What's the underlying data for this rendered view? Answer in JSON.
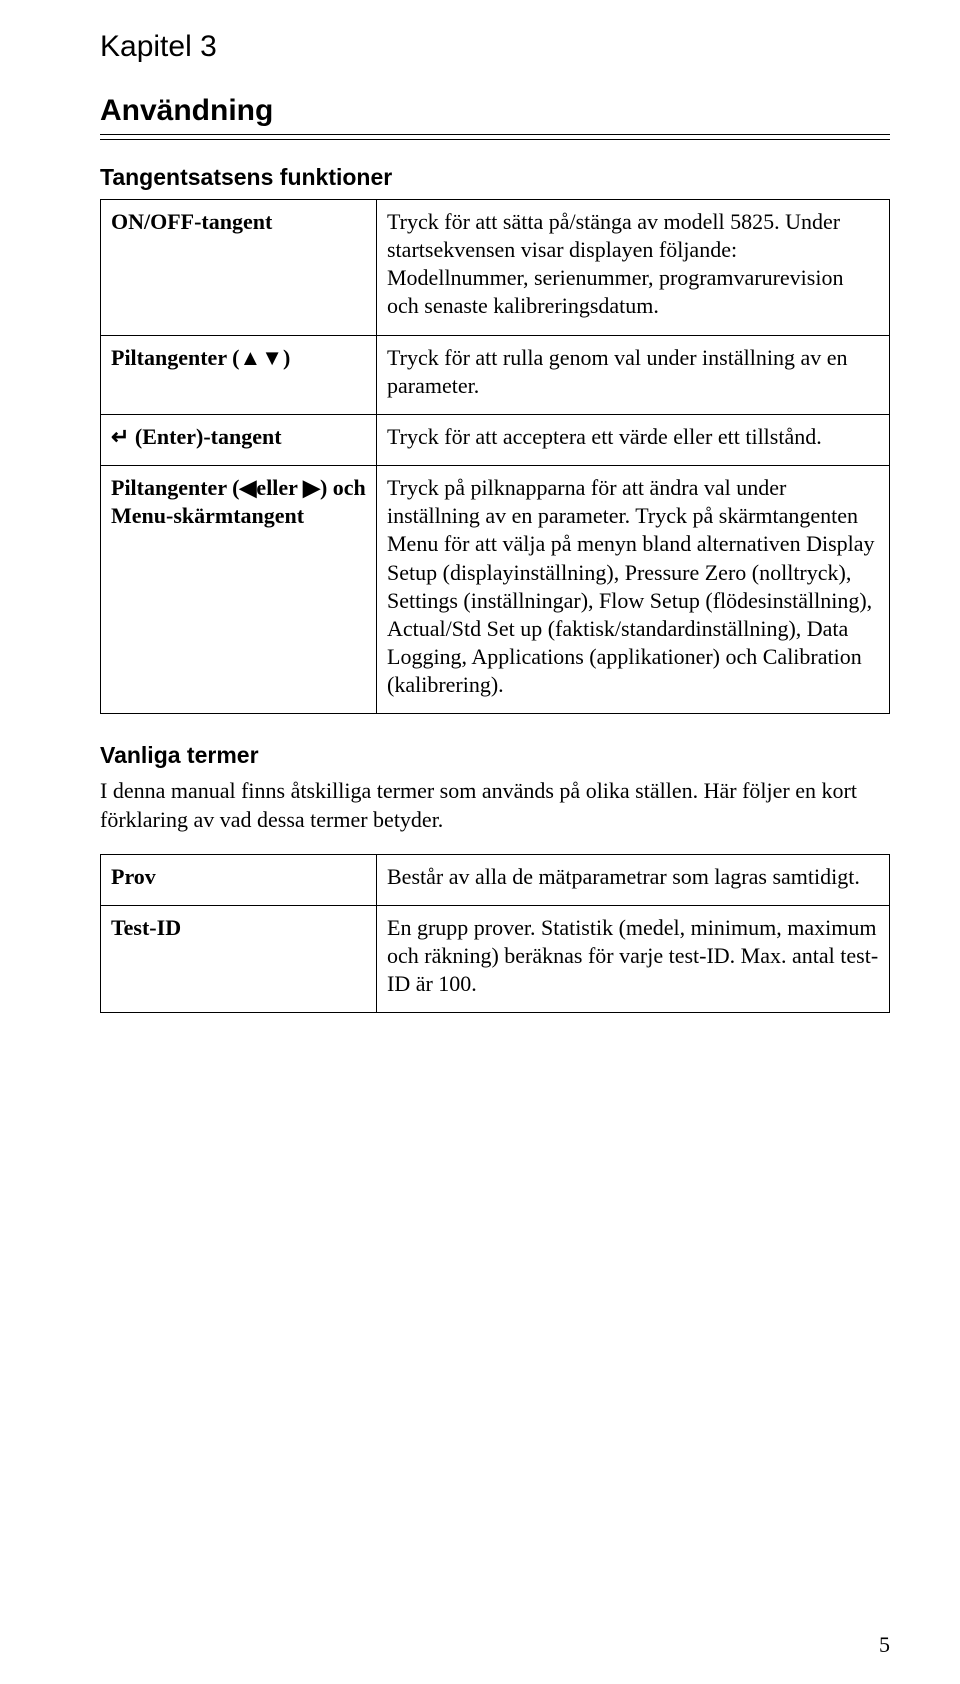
{
  "chapter": "Kapitel 3",
  "title": "Användning",
  "section1": {
    "heading": "Tangentsatsens funktioner",
    "rows": [
      {
        "term": "ON/OFF-tangent",
        "desc": "Tryck för att sätta på/stänga av modell 5825. Under startsekvensen visar displayen följande: Modellnummer, serienummer, programvarurevision och senaste kalibreringsdatum."
      },
      {
        "term": "Piltangenter (▲▼)",
        "desc": "Tryck för att rulla genom val under inställning av en parameter."
      },
      {
        "term": "↵ (Enter)-tangent",
        "desc": "Tryck för att acceptera ett värde eller ett tillstånd."
      },
      {
        "term": "Piltangenter (◀eller ▶) och Menu-skärmtangent",
        "desc": "Tryck på pilknapparna för att ändra val under inställning av en parameter. Tryck på skärmtangenten Menu för att välja på menyn bland alternativen Display Setup (displayinställning), Pressure Zero (nolltryck), Settings (inställningar), Flow Setup (flödesinställning), Actual/Std Set up (faktisk/standardinställning), Data Logging, Applications (applikationer) och Calibration (kalibrering)."
      }
    ]
  },
  "section2": {
    "heading": "Vanliga termer",
    "intro": "I denna manual finns åtskilliga termer som används på olika ställen. Här följer en kort förklaring av vad dessa termer betyder.",
    "rows": [
      {
        "term": "Prov",
        "desc": "Består av alla de mätparametrar som lagras samtidigt."
      },
      {
        "term": "Test-ID",
        "desc": "En grupp prover. Statistik (medel, minimum, maximum och räkning) beräknas för varje test-ID. Max. antal test-ID är 100."
      }
    ]
  },
  "pageNumber": "5"
}
